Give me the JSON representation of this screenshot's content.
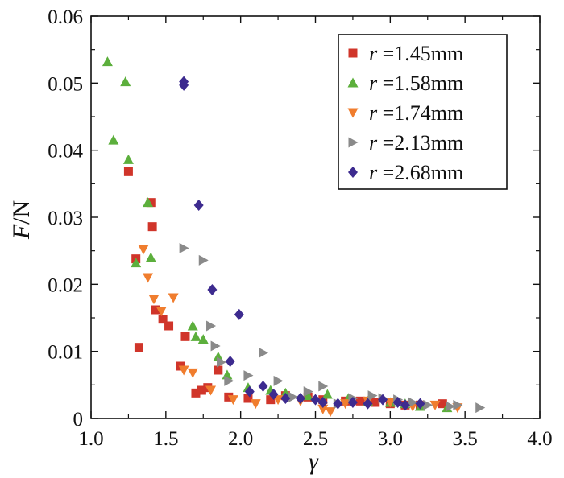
{
  "chart_data": {
    "type": "scatter",
    "xlabel": "γ",
    "ylabel_var": "F",
    "ylabel_unit": "/N",
    "xlim": [
      1.0,
      4.0
    ],
    "ylim": [
      0,
      0.06
    ],
    "xticks": [
      1.0,
      1.5,
      2.0,
      2.5,
      3.0,
      3.5,
      4.0
    ],
    "xtick_labels": [
      "1.0",
      "1.5",
      "2.0",
      "2.5",
      "3.0",
      "3.5",
      "4.0"
    ],
    "yticks": [
      0,
      0.01,
      0.02,
      0.03,
      0.04,
      0.05,
      0.06
    ],
    "ytick_labels": [
      "0",
      "0.01",
      "0.02",
      "0.03",
      "0.04",
      "0.05",
      "0.06"
    ],
    "grid": false,
    "legend_position": "top-right",
    "series": [
      {
        "var": "r",
        "name": " =1.45mm",
        "marker": "square",
        "color": "#d0352a",
        "points": [
          [
            1.25,
            0.0368
          ],
          [
            1.3,
            0.0238
          ],
          [
            1.32,
            0.0106
          ],
          [
            1.4,
            0.0322
          ],
          [
            1.41,
            0.0286
          ],
          [
            1.43,
            0.0162
          ],
          [
            1.48,
            0.0148
          ],
          [
            1.52,
            0.0138
          ],
          [
            1.6,
            0.0078
          ],
          [
            1.63,
            0.0122
          ],
          [
            1.7,
            0.0038
          ],
          [
            1.74,
            0.0042
          ],
          [
            1.78,
            0.0046
          ],
          [
            1.85,
            0.0072
          ],
          [
            1.92,
            0.0032
          ],
          [
            2.05,
            0.003
          ],
          [
            2.2,
            0.0028
          ],
          [
            2.3,
            0.0034
          ],
          [
            2.45,
            0.0032
          ],
          [
            2.55,
            0.0028
          ],
          [
            2.7,
            0.0026
          ],
          [
            2.8,
            0.0026
          ],
          [
            2.9,
            0.0024
          ],
          [
            3.0,
            0.0022
          ],
          [
            3.1,
            0.002
          ],
          [
            3.2,
            0.002
          ],
          [
            3.35,
            0.0022
          ]
        ]
      },
      {
        "var": "r",
        "name": " =1.58mm",
        "marker": "triangle-up",
        "color": "#5caf3c",
        "points": [
          [
            1.11,
            0.0532
          ],
          [
            1.15,
            0.0415
          ],
          [
            1.23,
            0.0502
          ],
          [
            1.25,
            0.0386
          ],
          [
            1.3,
            0.0232
          ],
          [
            1.38,
            0.0322
          ],
          [
            1.4,
            0.024
          ],
          [
            1.68,
            0.0138
          ],
          [
            1.7,
            0.0122
          ],
          [
            1.75,
            0.0118
          ],
          [
            1.85,
            0.0092
          ],
          [
            1.91,
            0.0065
          ],
          [
            2.05,
            0.0046
          ],
          [
            2.2,
            0.0042
          ],
          [
            2.3,
            0.0038
          ],
          [
            2.45,
            0.0034
          ],
          [
            2.58,
            0.0036
          ],
          [
            2.72,
            0.003
          ],
          [
            2.85,
            0.0026
          ],
          [
            3.0,
            0.0024
          ],
          [
            3.1,
            0.0022
          ],
          [
            3.2,
            0.0018
          ],
          [
            3.38,
            0.0016
          ]
        ]
      },
      {
        "var": "r",
        "name": " =1.74mm",
        "marker": "triangle-down",
        "color": "#f07d2e",
        "points": [
          [
            1.35,
            0.0252
          ],
          [
            1.38,
            0.021
          ],
          [
            1.42,
            0.0178
          ],
          [
            1.47,
            0.016
          ],
          [
            1.55,
            0.018
          ],
          [
            1.62,
            0.0072
          ],
          [
            1.68,
            0.0068
          ],
          [
            1.8,
            0.0042
          ],
          [
            1.95,
            0.0028
          ],
          [
            2.1,
            0.0022
          ],
          [
            2.25,
            0.0028
          ],
          [
            2.4,
            0.0026
          ],
          [
            2.55,
            0.0014
          ],
          [
            2.6,
            0.001
          ],
          [
            2.7,
            0.0022
          ],
          [
            2.85,
            0.0026
          ],
          [
            3.0,
            0.0024
          ],
          [
            3.15,
            0.0018
          ],
          [
            3.3,
            0.002
          ],
          [
            3.45,
            0.0016
          ]
        ]
      },
      {
        "var": "r",
        "name": " =2.13mm",
        "marker": "triangle-right",
        "color": "#8a8a8a",
        "points": [
          [
            1.62,
            0.0254
          ],
          [
            1.75,
            0.0236
          ],
          [
            1.8,
            0.0138
          ],
          [
            1.83,
            0.0108
          ],
          [
            1.87,
            0.0084
          ],
          [
            1.92,
            0.0056
          ],
          [
            2.05,
            0.0064
          ],
          [
            2.15,
            0.0098
          ],
          [
            2.25,
            0.0056
          ],
          [
            2.35,
            0.0032
          ],
          [
            2.45,
            0.004
          ],
          [
            2.55,
            0.0048
          ],
          [
            2.65,
            0.0022
          ],
          [
            2.75,
            0.003
          ],
          [
            2.88,
            0.0034
          ],
          [
            2.95,
            0.003
          ],
          [
            3.05,
            0.0028
          ],
          [
            3.15,
            0.0024
          ],
          [
            3.25,
            0.002
          ],
          [
            3.4,
            0.0018
          ],
          [
            3.45,
            0.002
          ],
          [
            3.6,
            0.0016
          ]
        ]
      },
      {
        "var": "r",
        "name": " =2.68mm",
        "marker": "diamond",
        "color": "#3d2b8f",
        "points": [
          [
            1.62,
            0.0502
          ],
          [
            1.62,
            0.0497
          ],
          [
            1.72,
            0.0318
          ],
          [
            1.81,
            0.0192
          ],
          [
            1.93,
            0.0085
          ],
          [
            1.99,
            0.0155
          ],
          [
            2.06,
            0.004
          ],
          [
            2.15,
            0.0048
          ],
          [
            2.22,
            0.0036
          ],
          [
            2.3,
            0.003
          ],
          [
            2.4,
            0.003
          ],
          [
            2.5,
            0.0028
          ],
          [
            2.55,
            0.0024
          ],
          [
            2.65,
            0.0022
          ],
          [
            2.75,
            0.0024
          ],
          [
            2.85,
            0.0022
          ],
          [
            2.95,
            0.0028
          ],
          [
            3.05,
            0.0024
          ],
          [
            3.1,
            0.002
          ],
          [
            3.2,
            0.0022
          ]
        ]
      }
    ]
  }
}
